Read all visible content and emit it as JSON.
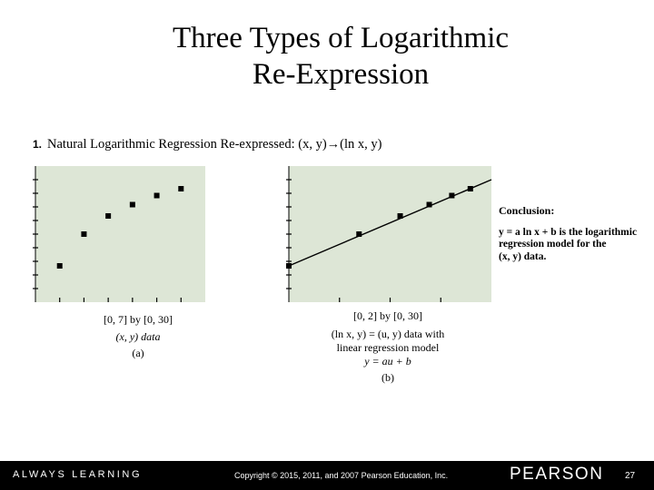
{
  "slide": {
    "title_line1": "Three Types of Logarithmic",
    "title_line2": "Re-Expression",
    "heading_number": "1.",
    "heading_text": "Natural Logarithmic Regression Re-expressed:  (x, y)→(ln x, y)"
  },
  "chart_data": [
    {
      "type": "scatter",
      "xlim": [
        0,
        7
      ],
      "ylim": [
        0,
        30
      ],
      "x": [
        1,
        2,
        3,
        4,
        5,
        6
      ],
      "y": [
        8,
        15,
        19,
        21.5,
        23.5,
        25
      ],
      "caption_window": "[0, 7] by [0, 30]",
      "caption_desc": "(x, y) data",
      "caption_label": "(a)",
      "background": "#dde6d6"
    },
    {
      "type": "scatter",
      "xlim": [
        0,
        2
      ],
      "ylim": [
        0,
        30
      ],
      "x": [
        0,
        0.693,
        1.099,
        1.386,
        1.609,
        1.792
      ],
      "y": [
        8,
        15,
        19,
        21.5,
        23.5,
        25
      ],
      "regression": {
        "slope": 9.5,
        "intercept": 8
      },
      "caption_window": "[0, 2] by [0, 30]",
      "caption_desc_line1": "(ln x, y) = (u, y) data with",
      "caption_desc_line2": "linear regression model",
      "caption_model": "y = au + b",
      "caption_label": "(b)",
      "background": "#dde6d6"
    }
  ],
  "conclusion": {
    "heading": "Conclusion:",
    "line1": "y = a ln x + b is the logarithmic",
    "line2": "regression model for the",
    "line3": "(x, y) data."
  },
  "footer": {
    "always_learning": "ALWAYS LEARNING",
    "copyright": "Copyright © 2015, 2011, and 2007 Pearson Education, Inc.",
    "brand": "PEARSON",
    "page": "27"
  }
}
